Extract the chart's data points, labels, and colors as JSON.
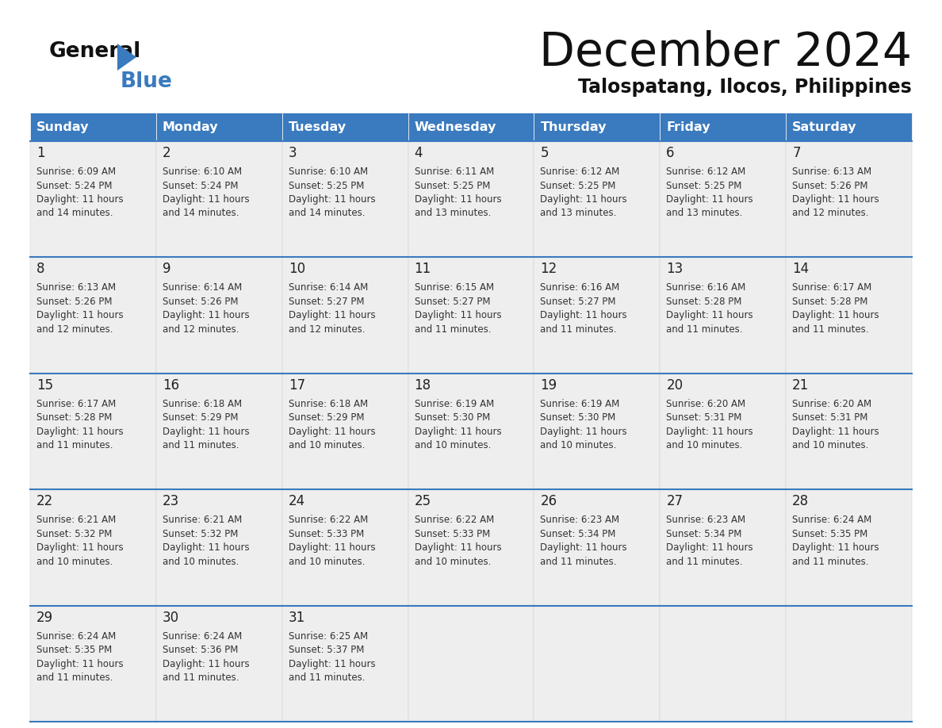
{
  "title": "December 2024",
  "subtitle": "Talospatang, Ilocos, Philippines",
  "header_color": "#3a7abf",
  "header_text_color": "#ffffff",
  "cell_bg_color": "#eeeeee",
  "border_color": "#3a7abf",
  "days_of_week": [
    "Sunday",
    "Monday",
    "Tuesday",
    "Wednesday",
    "Thursday",
    "Friday",
    "Saturday"
  ],
  "weeks": [
    [
      {
        "day": 1,
        "sunrise": "6:09 AM",
        "sunset": "5:24 PM",
        "daylight": "11 hours and 14 minutes."
      },
      {
        "day": 2,
        "sunrise": "6:10 AM",
        "sunset": "5:24 PM",
        "daylight": "11 hours and 14 minutes."
      },
      {
        "day": 3,
        "sunrise": "6:10 AM",
        "sunset": "5:25 PM",
        "daylight": "11 hours and 14 minutes."
      },
      {
        "day": 4,
        "sunrise": "6:11 AM",
        "sunset": "5:25 PM",
        "daylight": "11 hours and 13 minutes."
      },
      {
        "day": 5,
        "sunrise": "6:12 AM",
        "sunset": "5:25 PM",
        "daylight": "11 hours and 13 minutes."
      },
      {
        "day": 6,
        "sunrise": "6:12 AM",
        "sunset": "5:25 PM",
        "daylight": "11 hours and 13 minutes."
      },
      {
        "day": 7,
        "sunrise": "6:13 AM",
        "sunset": "5:26 PM",
        "daylight": "11 hours and 12 minutes."
      }
    ],
    [
      {
        "day": 8,
        "sunrise": "6:13 AM",
        "sunset": "5:26 PM",
        "daylight": "11 hours and 12 minutes."
      },
      {
        "day": 9,
        "sunrise": "6:14 AM",
        "sunset": "5:26 PM",
        "daylight": "11 hours and 12 minutes."
      },
      {
        "day": 10,
        "sunrise": "6:14 AM",
        "sunset": "5:27 PM",
        "daylight": "11 hours and 12 minutes."
      },
      {
        "day": 11,
        "sunrise": "6:15 AM",
        "sunset": "5:27 PM",
        "daylight": "11 hours and 11 minutes."
      },
      {
        "day": 12,
        "sunrise": "6:16 AM",
        "sunset": "5:27 PM",
        "daylight": "11 hours and 11 minutes."
      },
      {
        "day": 13,
        "sunrise": "6:16 AM",
        "sunset": "5:28 PM",
        "daylight": "11 hours and 11 minutes."
      },
      {
        "day": 14,
        "sunrise": "6:17 AM",
        "sunset": "5:28 PM",
        "daylight": "11 hours and 11 minutes."
      }
    ],
    [
      {
        "day": 15,
        "sunrise": "6:17 AM",
        "sunset": "5:28 PM",
        "daylight": "11 hours and 11 minutes."
      },
      {
        "day": 16,
        "sunrise": "6:18 AM",
        "sunset": "5:29 PM",
        "daylight": "11 hours and 11 minutes."
      },
      {
        "day": 17,
        "sunrise": "6:18 AM",
        "sunset": "5:29 PM",
        "daylight": "11 hours and 10 minutes."
      },
      {
        "day": 18,
        "sunrise": "6:19 AM",
        "sunset": "5:30 PM",
        "daylight": "11 hours and 10 minutes."
      },
      {
        "day": 19,
        "sunrise": "6:19 AM",
        "sunset": "5:30 PM",
        "daylight": "11 hours and 10 minutes."
      },
      {
        "day": 20,
        "sunrise": "6:20 AM",
        "sunset": "5:31 PM",
        "daylight": "11 hours and 10 minutes."
      },
      {
        "day": 21,
        "sunrise": "6:20 AM",
        "sunset": "5:31 PM",
        "daylight": "11 hours and 10 minutes."
      }
    ],
    [
      {
        "day": 22,
        "sunrise": "6:21 AM",
        "sunset": "5:32 PM",
        "daylight": "11 hours and 10 minutes."
      },
      {
        "day": 23,
        "sunrise": "6:21 AM",
        "sunset": "5:32 PM",
        "daylight": "11 hours and 10 minutes."
      },
      {
        "day": 24,
        "sunrise": "6:22 AM",
        "sunset": "5:33 PM",
        "daylight": "11 hours and 10 minutes."
      },
      {
        "day": 25,
        "sunrise": "6:22 AM",
        "sunset": "5:33 PM",
        "daylight": "11 hours and 10 minutes."
      },
      {
        "day": 26,
        "sunrise": "6:23 AM",
        "sunset": "5:34 PM",
        "daylight": "11 hours and 11 minutes."
      },
      {
        "day": 27,
        "sunrise": "6:23 AM",
        "sunset": "5:34 PM",
        "daylight": "11 hours and 11 minutes."
      },
      {
        "day": 28,
        "sunrise": "6:24 AM",
        "sunset": "5:35 PM",
        "daylight": "11 hours and 11 minutes."
      }
    ],
    [
      {
        "day": 29,
        "sunrise": "6:24 AM",
        "sunset": "5:35 PM",
        "daylight": "11 hours and 11 minutes."
      },
      {
        "day": 30,
        "sunrise": "6:24 AM",
        "sunset": "5:36 PM",
        "daylight": "11 hours and 11 minutes."
      },
      {
        "day": 31,
        "sunrise": "6:25 AM",
        "sunset": "5:37 PM",
        "daylight": "11 hours and 11 minutes."
      },
      null,
      null,
      null,
      null
    ]
  ]
}
